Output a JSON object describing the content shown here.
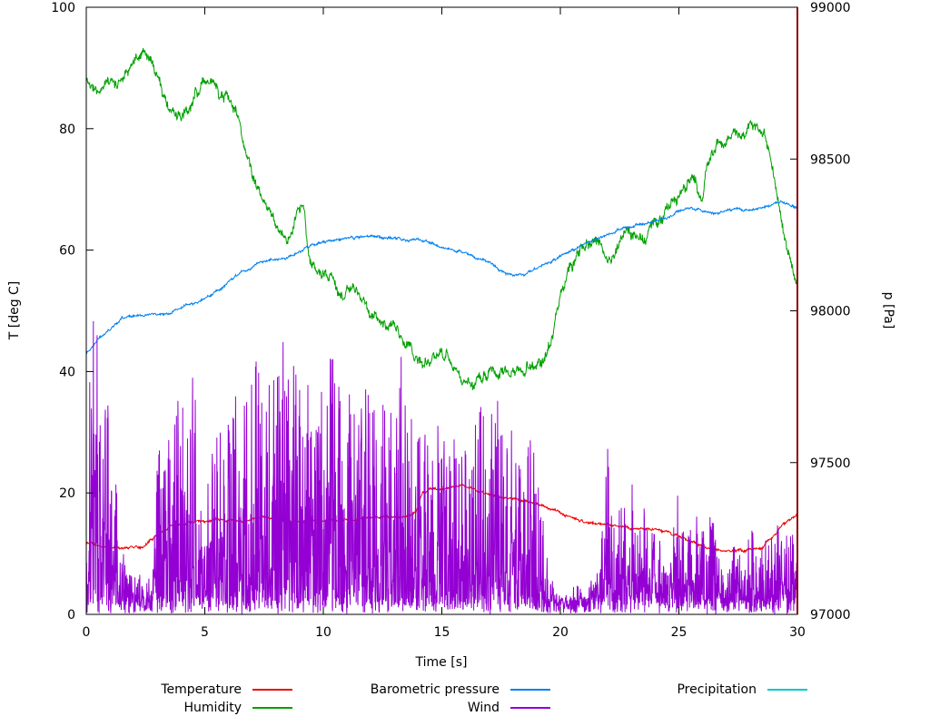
{
  "chart_data": {
    "type": "line",
    "title": "",
    "xlabel": "Time [s]",
    "ylabel_left": "T [deg C]",
    "ylabel_right": "p [Pa]",
    "xlim": [
      0,
      30
    ],
    "ylim_left": [
      0,
      100
    ],
    "ylim_right": [
      97000,
      99000
    ],
    "x_ticks": [
      0,
      5,
      10,
      15,
      20,
      25,
      30
    ],
    "y_ticks_left": [
      0,
      20,
      40,
      60,
      80,
      100
    ],
    "y_ticks_right": [
      97000,
      97500,
      98000,
      98500,
      99000
    ],
    "grid": false,
    "legend_position": "below",
    "background": "#ffffff",
    "border_color": "#000000",
    "legend": [
      {
        "label": "Temperature",
        "color": "#ee0000"
      },
      {
        "label": "Barometric pressure",
        "color": "#0080f0"
      },
      {
        "label": "Precipitation",
        "color": "#00c8c8"
      },
      {
        "label": "Humidity",
        "color": "#00a000"
      },
      {
        "label": "Wind",
        "color": "#9400d3"
      }
    ],
    "annotations": {
      "right_border_line": {
        "x": 30,
        "color": "#8b0000"
      }
    },
    "series": [
      {
        "name": "Temperature",
        "color": "#ee0000",
        "axis": "left",
        "noise": 0.3,
        "seed": 7,
        "keypoints": [
          [
            0,
            12
          ],
          [
            0.3,
            11.5
          ],
          [
            0.6,
            11.2
          ],
          [
            1,
            11
          ],
          [
            1.5,
            11
          ],
          [
            2,
            11
          ],
          [
            2.4,
            11.2
          ],
          [
            2.8,
            12.5
          ],
          [
            3.2,
            13.5
          ],
          [
            3.6,
            14.5
          ],
          [
            4,
            15
          ],
          [
            4.5,
            15.2
          ],
          [
            5,
            15.3
          ],
          [
            5.5,
            15.8
          ],
          [
            6,
            15.5
          ],
          [
            6.5,
            15.2
          ],
          [
            7,
            15.5
          ],
          [
            7.5,
            16
          ],
          [
            8,
            15.8
          ],
          [
            8.5,
            15.4
          ],
          [
            9,
            15.3
          ],
          [
            9.5,
            15.4
          ],
          [
            10,
            15.3
          ],
          [
            10.5,
            15.4
          ],
          [
            11,
            15.5
          ],
          [
            11.5,
            15.6
          ],
          [
            12,
            15.9
          ],
          [
            12.5,
            16
          ],
          [
            13,
            16
          ],
          [
            13.5,
            16.2
          ],
          [
            13.9,
            17
          ],
          [
            14.2,
            20
          ],
          [
            14.5,
            20.8
          ],
          [
            15,
            20.5
          ],
          [
            15.5,
            21
          ],
          [
            15.8,
            21.3
          ],
          [
            16.2,
            20.8
          ],
          [
            16.6,
            20.2
          ],
          [
            17,
            19.8
          ],
          [
            17.5,
            19.3
          ],
          [
            18,
            19
          ],
          [
            18.5,
            18.6
          ],
          [
            19,
            18.2
          ],
          [
            19.5,
            17.5
          ],
          [
            20,
            16.8
          ],
          [
            20.5,
            15.8
          ],
          [
            21,
            15.2
          ],
          [
            21.5,
            14.9
          ],
          [
            22,
            14.8
          ],
          [
            22.5,
            14.5
          ],
          [
            23,
            14.2
          ],
          [
            23.5,
            14
          ],
          [
            24,
            14
          ],
          [
            24.5,
            13.5
          ],
          [
            25,
            13
          ],
          [
            25.5,
            12
          ],
          [
            26,
            11.3
          ],
          [
            26.5,
            10.8
          ],
          [
            27,
            10.5
          ],
          [
            27.5,
            10.5
          ],
          [
            28,
            10.6
          ],
          [
            28.5,
            11
          ],
          [
            29,
            13
          ],
          [
            29.3,
            14.5
          ],
          [
            29.6,
            15.5
          ],
          [
            30,
            16.5
          ]
        ]
      },
      {
        "name": "Humidity",
        "color": "#00a000",
        "axis": "left",
        "noise": 1.3,
        "seed": 13,
        "keypoints": [
          [
            0,
            88
          ],
          [
            0.5,
            87
          ],
          [
            1,
            87.5
          ],
          [
            1.5,
            88
          ],
          [
            2,
            91
          ],
          [
            2.4,
            93
          ],
          [
            2.8,
            91.5
          ],
          [
            3.2,
            86
          ],
          [
            3.6,
            83
          ],
          [
            4,
            82.5
          ],
          [
            4.4,
            84
          ],
          [
            4.8,
            87
          ],
          [
            5,
            88.5
          ],
          [
            5.3,
            87.5
          ],
          [
            5.6,
            86
          ],
          [
            6,
            85.5
          ],
          [
            6.3,
            83
          ],
          [
            6.6,
            78
          ],
          [
            7,
            72
          ],
          [
            7.4,
            68
          ],
          [
            7.8,
            66
          ],
          [
            8.2,
            63
          ],
          [
            8.6,
            62
          ],
          [
            9,
            67
          ],
          [
            9.2,
            66
          ],
          [
            9.4,
            59
          ],
          [
            9.7,
            57
          ],
          [
            10,
            56
          ],
          [
            10.4,
            55
          ],
          [
            10.8,
            52.5
          ],
          [
            11.2,
            53.5
          ],
          [
            11.6,
            52
          ],
          [
            12,
            50
          ],
          [
            12.4,
            48.5
          ],
          [
            12.8,
            47.5
          ],
          [
            13.2,
            46
          ],
          [
            13.6,
            44.5
          ],
          [
            14,
            41.5
          ],
          [
            14.4,
            41
          ],
          [
            14.8,
            43
          ],
          [
            15.2,
            42.5
          ],
          [
            15.6,
            40
          ],
          [
            16,
            37.5
          ],
          [
            16.4,
            38.5
          ],
          [
            16.8,
            39.5
          ],
          [
            17.2,
            40
          ],
          [
            17.6,
            39.5
          ],
          [
            18,
            40
          ],
          [
            18.4,
            40.5
          ],
          [
            18.8,
            40.5
          ],
          [
            19.2,
            41.5
          ],
          [
            19.6,
            45
          ],
          [
            20,
            52
          ],
          [
            20.4,
            57
          ],
          [
            20.8,
            60
          ],
          [
            21.2,
            61.5
          ],
          [
            21.6,
            62
          ],
          [
            22,
            58.5
          ],
          [
            22.4,
            60
          ],
          [
            22.8,
            62.5
          ],
          [
            23.2,
            63
          ],
          [
            23.6,
            62
          ],
          [
            24,
            64.5
          ],
          [
            24.4,
            66
          ],
          [
            24.8,
            68
          ],
          [
            25.2,
            70
          ],
          [
            25.6,
            72
          ],
          [
            26,
            68
          ],
          [
            26.2,
            75
          ],
          [
            26.6,
            77
          ],
          [
            27,
            78
          ],
          [
            27.4,
            79.5
          ],
          [
            27.8,
            79
          ],
          [
            28.2,
            81
          ],
          [
            28.5,
            80
          ],
          [
            28.8,
            76
          ],
          [
            29.1,
            70
          ],
          [
            29.4,
            64
          ],
          [
            29.7,
            58
          ],
          [
            30,
            55
          ]
        ]
      },
      {
        "name": "Barometric pressure",
        "color": "#0080f0",
        "axis": "right",
        "noise": 6,
        "seed": 21,
        "keypoints": [
          [
            0,
            97860
          ],
          [
            0.5,
            97905
          ],
          [
            1,
            97940
          ],
          [
            1.5,
            97975
          ],
          [
            2,
            97985
          ],
          [
            2.5,
            97985
          ],
          [
            3,
            97990
          ],
          [
            3.5,
            97990
          ],
          [
            4,
            98010
          ],
          [
            4.5,
            98025
          ],
          [
            5,
            98040
          ],
          [
            5.5,
            98065
          ],
          [
            6,
            98095
          ],
          [
            6.5,
            98125
          ],
          [
            7,
            98145
          ],
          [
            7.5,
            98165
          ],
          [
            8,
            98170
          ],
          [
            8.5,
            98175
          ],
          [
            9,
            98195
          ],
          [
            9.5,
            98215
          ],
          [
            10,
            98228
          ],
          [
            10.5,
            98232
          ],
          [
            11,
            98240
          ],
          [
            11.5,
            98242
          ],
          [
            12,
            98245
          ],
          [
            12.5,
            98242
          ],
          [
            13,
            98240
          ],
          [
            13.5,
            98232
          ],
          [
            14,
            98238
          ],
          [
            14.5,
            98222
          ],
          [
            15,
            98210
          ],
          [
            15.5,
            98200
          ],
          [
            16,
            98190
          ],
          [
            16.5,
            98172
          ],
          [
            17,
            98160
          ],
          [
            17.5,
            98130
          ],
          [
            18,
            98115
          ],
          [
            18.5,
            98120
          ],
          [
            19,
            98140
          ],
          [
            19.5,
            98158
          ],
          [
            20,
            98178
          ],
          [
            20.5,
            98200
          ],
          [
            21,
            98218
          ],
          [
            21.5,
            98238
          ],
          [
            22,
            98250
          ],
          [
            22.5,
            98268
          ],
          [
            23,
            98278
          ],
          [
            23.5,
            98288
          ],
          [
            24,
            98298
          ],
          [
            24.5,
            98308
          ],
          [
            25,
            98328
          ],
          [
            25.5,
            98340
          ],
          [
            26,
            98330
          ],
          [
            26.5,
            98318
          ],
          [
            27,
            98330
          ],
          [
            27.5,
            98335
          ],
          [
            28,
            98330
          ],
          [
            28.5,
            98340
          ],
          [
            29,
            98355
          ],
          [
            29.3,
            98360
          ],
          [
            29.6,
            98350
          ],
          [
            30,
            98340
          ]
        ]
      },
      {
        "name": "Wind",
        "color": "#9400d3",
        "axis": "left",
        "render": "spikes",
        "seed": 99,
        "envelope": [
          [
            0,
            32
          ],
          [
            0.3,
            48
          ],
          [
            0.6,
            40
          ],
          [
            1,
            30
          ],
          [
            1.3,
            20
          ],
          [
            1.6,
            8
          ],
          [
            2,
            5
          ],
          [
            2.5,
            4
          ],
          [
            2.8,
            8
          ],
          [
            3,
            25
          ],
          [
            3.3,
            35
          ],
          [
            3.6,
            30
          ],
          [
            4,
            34
          ],
          [
            4.3,
            28
          ],
          [
            4.5,
            46
          ],
          [
            4.8,
            30
          ],
          [
            5,
            26
          ],
          [
            5.5,
            28
          ],
          [
            6,
            30
          ],
          [
            6.5,
            38
          ],
          [
            7,
            40
          ],
          [
            7.3,
            44
          ],
          [
            7.6,
            40
          ],
          [
            8,
            42
          ],
          [
            8.3,
            48
          ],
          [
            8.6,
            44
          ],
          [
            9,
            46
          ],
          [
            9.3,
            40
          ],
          [
            9.6,
            38
          ],
          [
            10,
            36
          ],
          [
            10.3,
            42
          ],
          [
            10.6,
            38
          ],
          [
            11,
            40
          ],
          [
            11.5,
            36
          ],
          [
            12,
            38
          ],
          [
            12.5,
            34
          ],
          [
            13,
            30
          ],
          [
            13.3,
            42
          ],
          [
            13.6,
            34
          ],
          [
            14,
            30
          ],
          [
            14.5,
            28
          ],
          [
            15,
            30
          ],
          [
            15.3,
            34
          ],
          [
            15.6,
            28
          ],
          [
            16,
            26
          ],
          [
            16.5,
            34
          ],
          [
            17,
            30
          ],
          [
            17.3,
            36
          ],
          [
            17.6,
            28
          ],
          [
            18,
            30
          ],
          [
            18.3,
            26
          ],
          [
            18.6,
            28
          ],
          [
            19,
            24
          ],
          [
            19.3,
            12
          ],
          [
            19.6,
            4
          ],
          [
            20,
            2
          ],
          [
            20.5,
            2
          ],
          [
            21,
            3
          ],
          [
            21.5,
            4
          ],
          [
            21.8,
            16
          ],
          [
            22,
            30
          ],
          [
            22.3,
            12
          ],
          [
            22.5,
            18
          ],
          [
            23,
            20
          ],
          [
            23.3,
            14
          ],
          [
            23.6,
            18
          ],
          [
            24,
            12
          ],
          [
            24.3,
            8
          ],
          [
            24.6,
            6
          ],
          [
            25,
            22
          ],
          [
            25.3,
            10
          ],
          [
            25.6,
            16
          ],
          [
            26,
            14
          ],
          [
            26.3,
            18
          ],
          [
            26.6,
            10
          ],
          [
            27,
            8
          ],
          [
            27.3,
            12
          ],
          [
            27.6,
            10
          ],
          [
            28,
            14
          ],
          [
            28.3,
            10
          ],
          [
            28.6,
            12
          ],
          [
            29,
            10
          ],
          [
            29.3,
            20
          ],
          [
            29.6,
            12
          ],
          [
            30,
            14
          ]
        ]
      },
      {
        "name": "Precipitation",
        "color": "#00c8c8",
        "axis": "left",
        "noise": 0,
        "seed": 1,
        "keypoints": []
      }
    ]
  }
}
